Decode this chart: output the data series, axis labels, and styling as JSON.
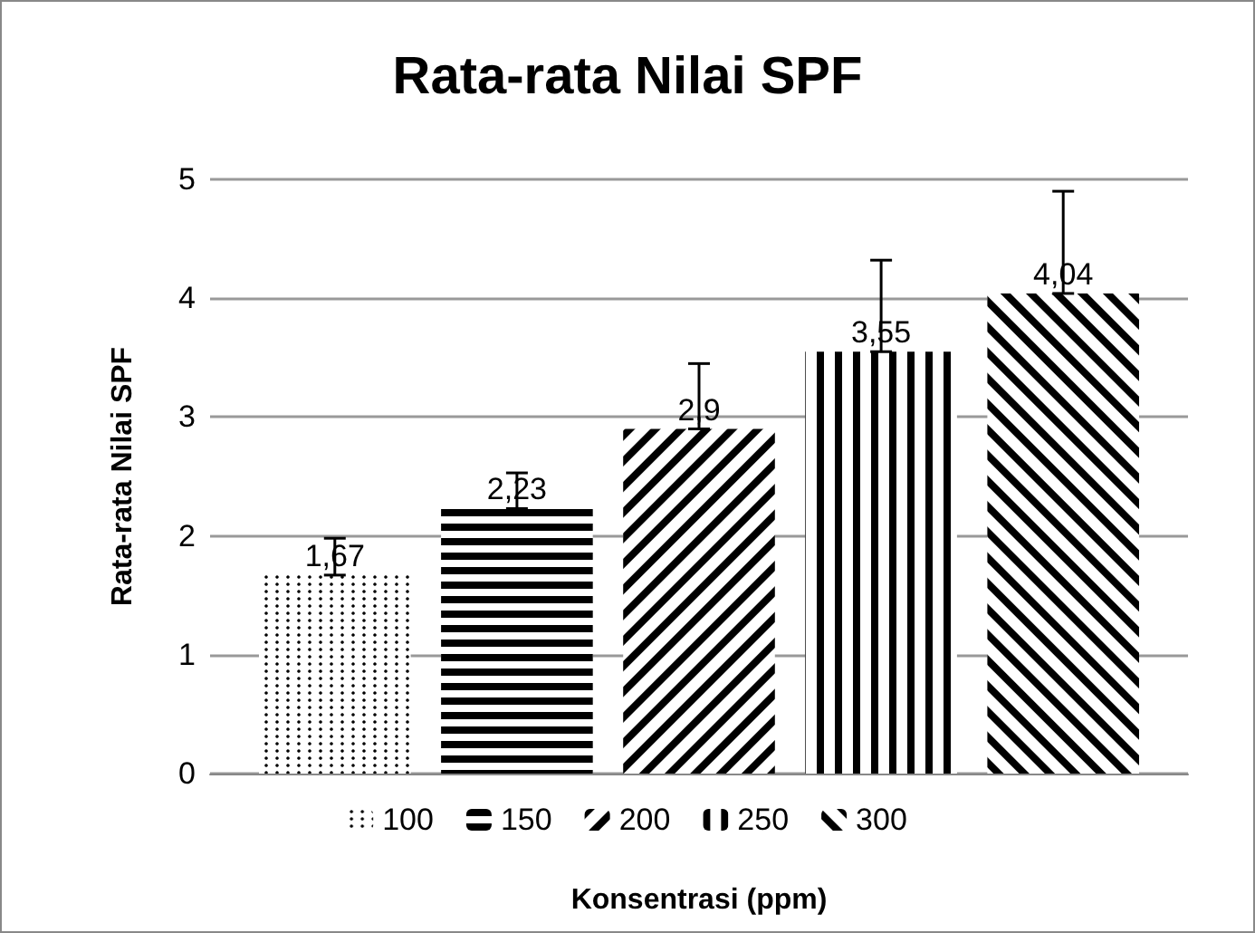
{
  "chart_data": {
    "type": "bar",
    "title": "Rata-rata Nilai SPF",
    "xlabel": "Konsentrasi (ppm)",
    "ylabel": "Rata-rata Nilai SPF",
    "categories": [
      null
    ],
    "series": [
      {
        "name": "100",
        "color": "#000000",
        "values": [
          1.67
        ],
        "errors": [
          [
            1.67,
            1.98
          ]
        ],
        "value_labels": [
          "1,67"
        ]
      },
      {
        "name": "150",
        "color": "#000000",
        "values": [
          2.23
        ],
        "errors": [
          [
            2.23,
            2.53
          ]
        ],
        "value_labels": [
          "2,23"
        ]
      },
      {
        "name": "200",
        "color": "#000000",
        "values": [
          2.9
        ],
        "errors": [
          [
            2.9,
            3.45
          ]
        ],
        "value_labels": [
          "2,9"
        ]
      },
      {
        "name": "250",
        "color": "#000000",
        "values": [
          3.55
        ],
        "errors": [
          [
            3.55,
            4.32
          ]
        ],
        "value_labels": [
          "3,55"
        ]
      },
      {
        "name": "300",
        "color": "#000000",
        "values": [
          4.04
        ],
        "errors": [
          [
            4.04,
            4.9
          ]
        ],
        "value_labels": [
          "4,04"
        ]
      }
    ],
    "ylim": [
      0,
      5
    ],
    "yticks": [
      0,
      1,
      2,
      3,
      4,
      5
    ],
    "grid": "y",
    "legend": "bottom"
  }
}
